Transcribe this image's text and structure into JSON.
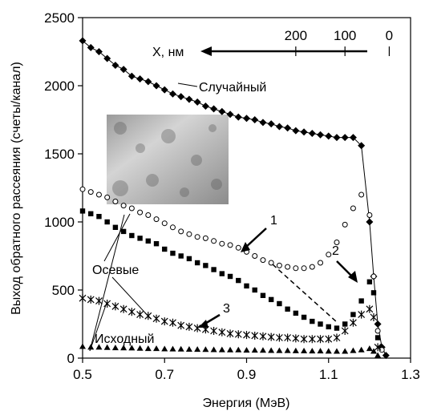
{
  "chart_data": {
    "type": "scatter",
    "xlabel": "Энергия (МэВ)",
    "ylabel": "Выход обратного рассеяния (счеты/канал)",
    "xlim": [
      0.5,
      1.3
    ],
    "ylim": [
      0,
      2500
    ],
    "xticks": [
      "0.5",
      "0.7",
      "0.9",
      "1.1",
      "1.3"
    ],
    "yticks": [
      "0",
      "500",
      "1000",
      "1500",
      "2000",
      "2500"
    ],
    "grid": false,
    "depth_axis": {
      "label": "X, нм",
      "ticks": [
        "200",
        "100",
        "0"
      ],
      "tick_energies": [
        1.02,
        1.14,
        1.248
      ]
    },
    "annotations": {
      "random": "Случайный",
      "axial": "Осевые",
      "initial": "Исходный",
      "n1": "1",
      "n2": "2",
      "n3": "3"
    },
    "series": [
      {
        "name": "Случайный",
        "marker": "diamond-filled",
        "x": [
          0.5,
          0.52,
          0.54,
          0.56,
          0.58,
          0.6,
          0.62,
          0.64,
          0.66,
          0.68,
          0.7,
          0.72,
          0.74,
          0.76,
          0.78,
          0.8,
          0.82,
          0.84,
          0.86,
          0.88,
          0.9,
          0.92,
          0.94,
          0.96,
          0.98,
          1.0,
          1.02,
          1.04,
          1.06,
          1.08,
          1.1,
          1.12,
          1.14,
          1.16,
          1.18,
          1.2,
          1.21,
          1.22,
          1.23,
          1.24
        ],
        "y": [
          2330,
          2280,
          2250,
          2200,
          2150,
          2120,
          2070,
          2050,
          2030,
          2000,
          1970,
          1940,
          1920,
          1900,
          1880,
          1850,
          1830,
          1810,
          1790,
          1770,
          1760,
          1750,
          1730,
          1720,
          1700,
          1690,
          1670,
          1660,
          1650,
          1640,
          1630,
          1620,
          1620,
          1620,
          1560,
          1000,
          600,
          250,
          80,
          20
        ]
      },
      {
        "name": "1",
        "marker": "circle-open",
        "x": [
          0.5,
          0.52,
          0.54,
          0.56,
          0.58,
          0.6,
          0.62,
          0.64,
          0.66,
          0.68,
          0.7,
          0.72,
          0.74,
          0.76,
          0.78,
          0.8,
          0.82,
          0.84,
          0.86,
          0.88,
          0.9,
          0.92,
          0.94,
          0.96,
          0.98,
          1.0,
          1.02,
          1.04,
          1.06,
          1.08,
          1.1,
          1.12,
          1.14,
          1.16,
          1.18,
          1.2,
          1.21,
          1.22,
          1.23
        ],
        "y": [
          1240,
          1220,
          1200,
          1180,
          1150,
          1120,
          1100,
          1070,
          1050,
          1020,
          990,
          960,
          930,
          910,
          890,
          880,
          860,
          840,
          830,
          810,
          780,
          750,
          720,
          700,
          680,
          670,
          660,
          660,
          670,
          700,
          760,
          850,
          980,
          1100,
          1200,
          1050,
          600,
          200,
          60
        ]
      },
      {
        "name": "2",
        "marker": "square-filled",
        "x": [
          0.5,
          0.52,
          0.54,
          0.56,
          0.58,
          0.6,
          0.62,
          0.64,
          0.66,
          0.68,
          0.7,
          0.72,
          0.74,
          0.76,
          0.78,
          0.8,
          0.82,
          0.84,
          0.86,
          0.88,
          0.9,
          0.92,
          0.94,
          0.96,
          0.98,
          1.0,
          1.02,
          1.04,
          1.06,
          1.08,
          1.1,
          1.12,
          1.14,
          1.16,
          1.18,
          1.2,
          1.21,
          1.22
        ],
        "y": [
          1080,
          1060,
          1040,
          1000,
          960,
          930,
          900,
          880,
          860,
          840,
          800,
          770,
          750,
          730,
          700,
          680,
          650,
          620,
          600,
          570,
          530,
          500,
          460,
          430,
          400,
          360,
          330,
          300,
          270,
          250,
          230,
          220,
          250,
          320,
          420,
          560,
          480,
          150
        ]
      },
      {
        "name": "3",
        "marker": "star",
        "x": [
          0.5,
          0.52,
          0.54,
          0.56,
          0.58,
          0.6,
          0.62,
          0.64,
          0.66,
          0.68,
          0.7,
          0.72,
          0.74,
          0.76,
          0.78,
          0.8,
          0.82,
          0.84,
          0.86,
          0.88,
          0.9,
          0.92,
          0.94,
          0.96,
          0.98,
          1.0,
          1.02,
          1.04,
          1.06,
          1.08,
          1.1,
          1.12,
          1.14,
          1.16,
          1.18,
          1.2,
          1.21,
          1.22
        ],
        "y": [
          440,
          430,
          420,
          400,
          380,
          360,
          340,
          320,
          310,
          290,
          270,
          260,
          240,
          230,
          220,
          210,
          200,
          190,
          180,
          175,
          170,
          165,
          160,
          155,
          150,
          150,
          145,
          140,
          140,
          140,
          140,
          150,
          200,
          260,
          320,
          360,
          300,
          80
        ]
      },
      {
        "name": "Исходный",
        "marker": "triangle-filled",
        "x": [
          0.5,
          0.52,
          0.54,
          0.56,
          0.58,
          0.6,
          0.62,
          0.64,
          0.66,
          0.68,
          0.7,
          0.72,
          0.74,
          0.76,
          0.78,
          0.8,
          0.82,
          0.84,
          0.86,
          0.88,
          0.9,
          0.92,
          0.94,
          0.96,
          0.98,
          1.0,
          1.02,
          1.04,
          1.06,
          1.08,
          1.1,
          1.12,
          1.14,
          1.16,
          1.18,
          1.2,
          1.21,
          1.22
        ],
        "y": [
          85,
          80,
          80,
          78,
          76,
          75,
          74,
          72,
          70,
          70,
          68,
          67,
          66,
          65,
          64,
          63,
          62,
          61,
          60,
          60,
          58,
          58,
          57,
          56,
          55,
          55,
          54,
          53,
          52,
          52,
          51,
          50,
          50,
          55,
          60,
          70,
          50,
          20
        ]
      }
    ]
  }
}
